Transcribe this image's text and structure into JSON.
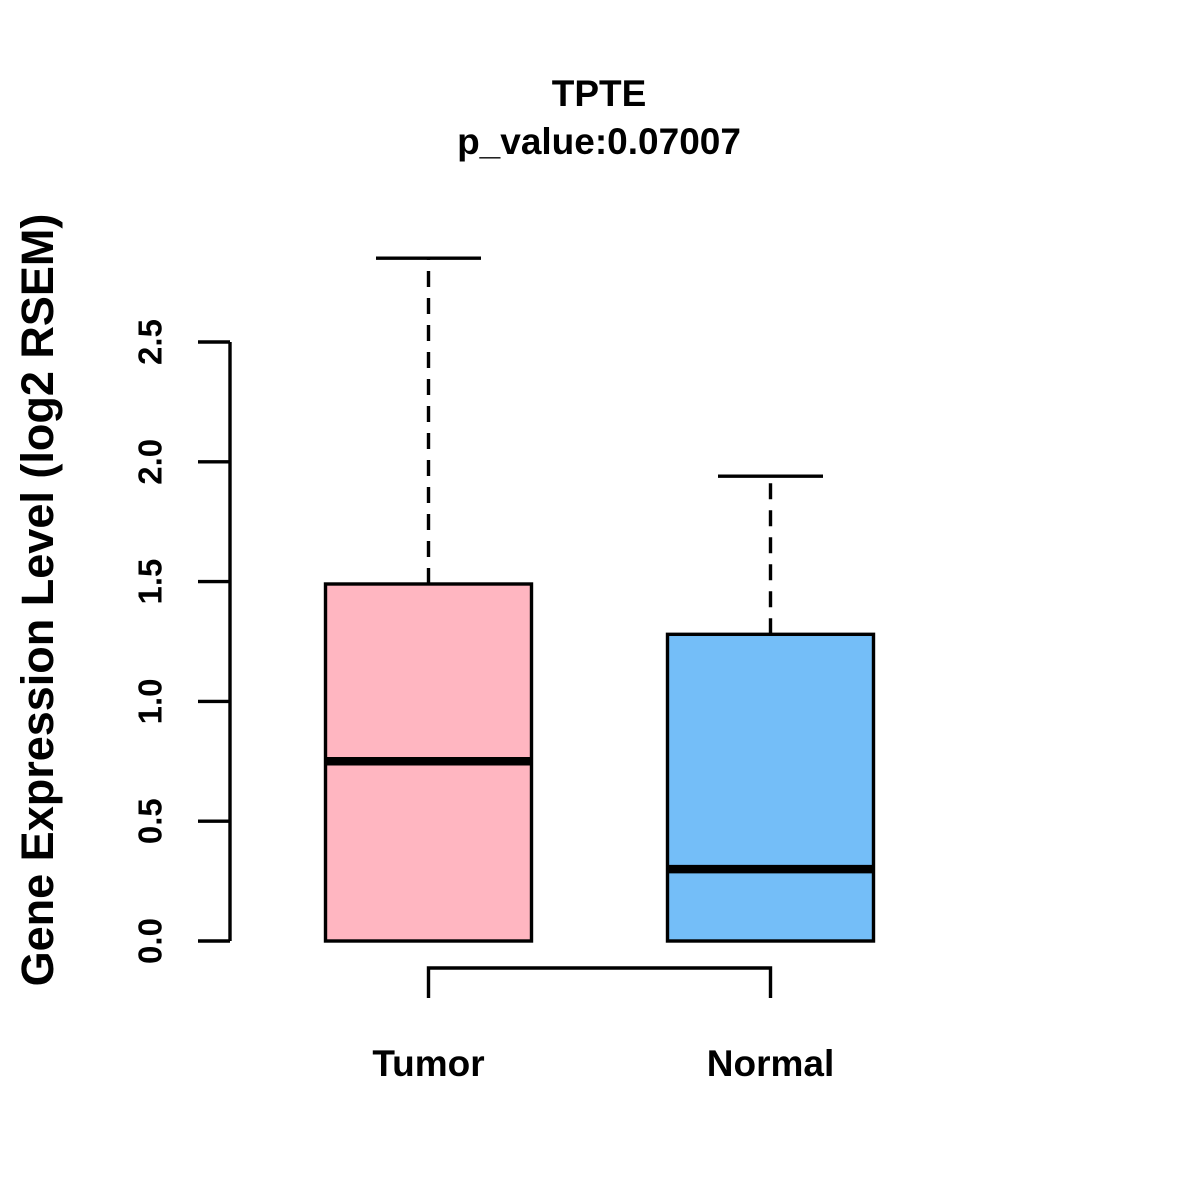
{
  "chart_data": {
    "type": "box",
    "title": "TPTE",
    "subtitle": "p_value:0.07007",
    "ylabel": "Gene Expression Level (log2 RSEM)",
    "categories": [
      "Tumor",
      "Normal"
    ],
    "ytick_labels": [
      "0.0",
      "0.5",
      "1.0",
      "1.5",
      "2.0",
      "2.5"
    ],
    "yticks": [
      0,
      0.5,
      1.0,
      1.5,
      2.0,
      2.5
    ],
    "ylim": [
      0,
      2.9
    ],
    "grid": false,
    "legend": "none",
    "series": [
      {
        "name": "Tumor",
        "fill": "#FFB6C1",
        "whisker_low": 0.0,
        "q1": 0.0,
        "median": 0.75,
        "q3": 1.49,
        "whisker_high": 2.85
      },
      {
        "name": "Normal",
        "fill": "#74BEF8",
        "whisker_low": 0.0,
        "q1": 0.0,
        "median": 0.3,
        "q3": 1.28,
        "whisker_high": 1.94
      }
    ],
    "annotations": {
      "comparison_bracket_between": [
        "Tumor",
        "Normal"
      ]
    },
    "colors": {
      "stroke": "#000000",
      "background": "#FFFFFF"
    }
  }
}
